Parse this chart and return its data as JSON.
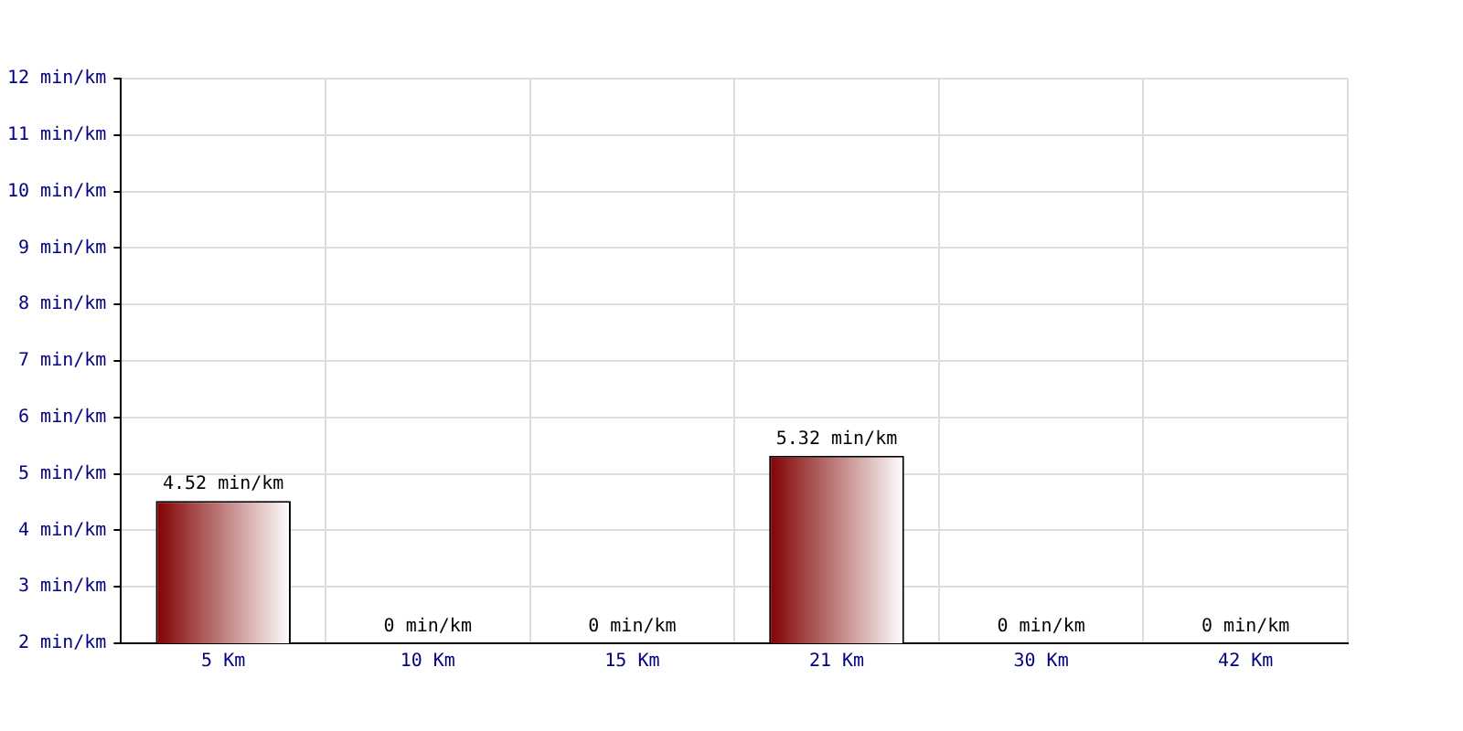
{
  "chart_data": {
    "type": "bar",
    "categories": [
      "5 Km",
      "10 Km",
      "15 Km",
      "21 Km",
      "30 Km",
      "42 Km"
    ],
    "values": [
      4.52,
      null,
      null,
      5.32,
      null,
      null
    ],
    "value_labels": [
      "4.52 min/km",
      "0 min/km",
      "0 min/km",
      "5.32 min/km",
      "0 min/km",
      "0 min/km"
    ],
    "color": "#800000",
    "ylim": [
      2,
      12
    ],
    "yticks": [
      {
        "value": 2,
        "label": "2 min/km"
      },
      {
        "value": 3,
        "label": "3 min/km"
      },
      {
        "value": 4,
        "label": "4 min/km"
      },
      {
        "value": 5,
        "label": "5 min/km"
      },
      {
        "value": 6,
        "label": "6 min/km"
      },
      {
        "value": 7,
        "label": "7 min/km"
      },
      {
        "value": 8,
        "label": "8 min/km"
      },
      {
        "value": 9,
        "label": "9 min/km"
      },
      {
        "value": 10,
        "label": "10 min/km"
      },
      {
        "value": 11,
        "label": "11 min/km"
      },
      {
        "value": 12,
        "label": "12 min/km"
      }
    ],
    "grid": true,
    "legend": false
  }
}
